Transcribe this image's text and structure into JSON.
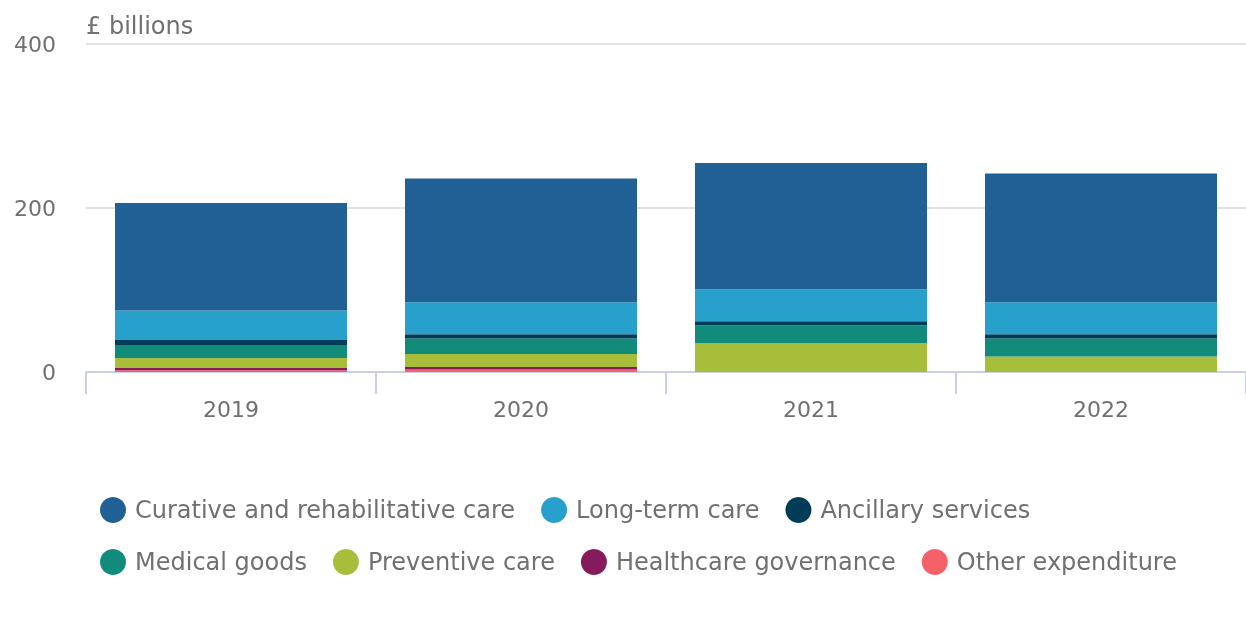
{
  "chart_data": {
    "type": "bar",
    "stacked": true,
    "ylabel": "£ billions",
    "categories": [
      "2019",
      "2020",
      "2021",
      "2022"
    ],
    "series": [
      {
        "name": "Curative and rehabilitative care",
        "color": "#206095",
        "values": [
          131,
          151,
          154,
          157
        ]
      },
      {
        "name": "Long-term care",
        "color": "#27a0cc",
        "values": [
          36,
          39,
          39,
          39
        ]
      },
      {
        "name": "Ancillary services",
        "color": "#003c57",
        "values": [
          6,
          5,
          5,
          5
        ]
      },
      {
        "name": "Medical goods",
        "color": "#118c7b",
        "values": [
          16,
          19,
          22,
          22
        ]
      },
      {
        "name": "Preventive care",
        "color": "#a8bd3a",
        "values": [
          12,
          16,
          35,
          19
        ]
      },
      {
        "name": "Healthcare governance",
        "color": "#871a5b",
        "values": [
          3,
          3,
          0,
          0
        ]
      },
      {
        "name": "Other expenditure",
        "color": "#f66068",
        "values": [
          2,
          3,
          0,
          0
        ]
      }
    ],
    "ylim": [
      0,
      400
    ],
    "yticks": [
      0,
      200,
      400
    ],
    "grid": "y",
    "legend": "bottom"
  }
}
